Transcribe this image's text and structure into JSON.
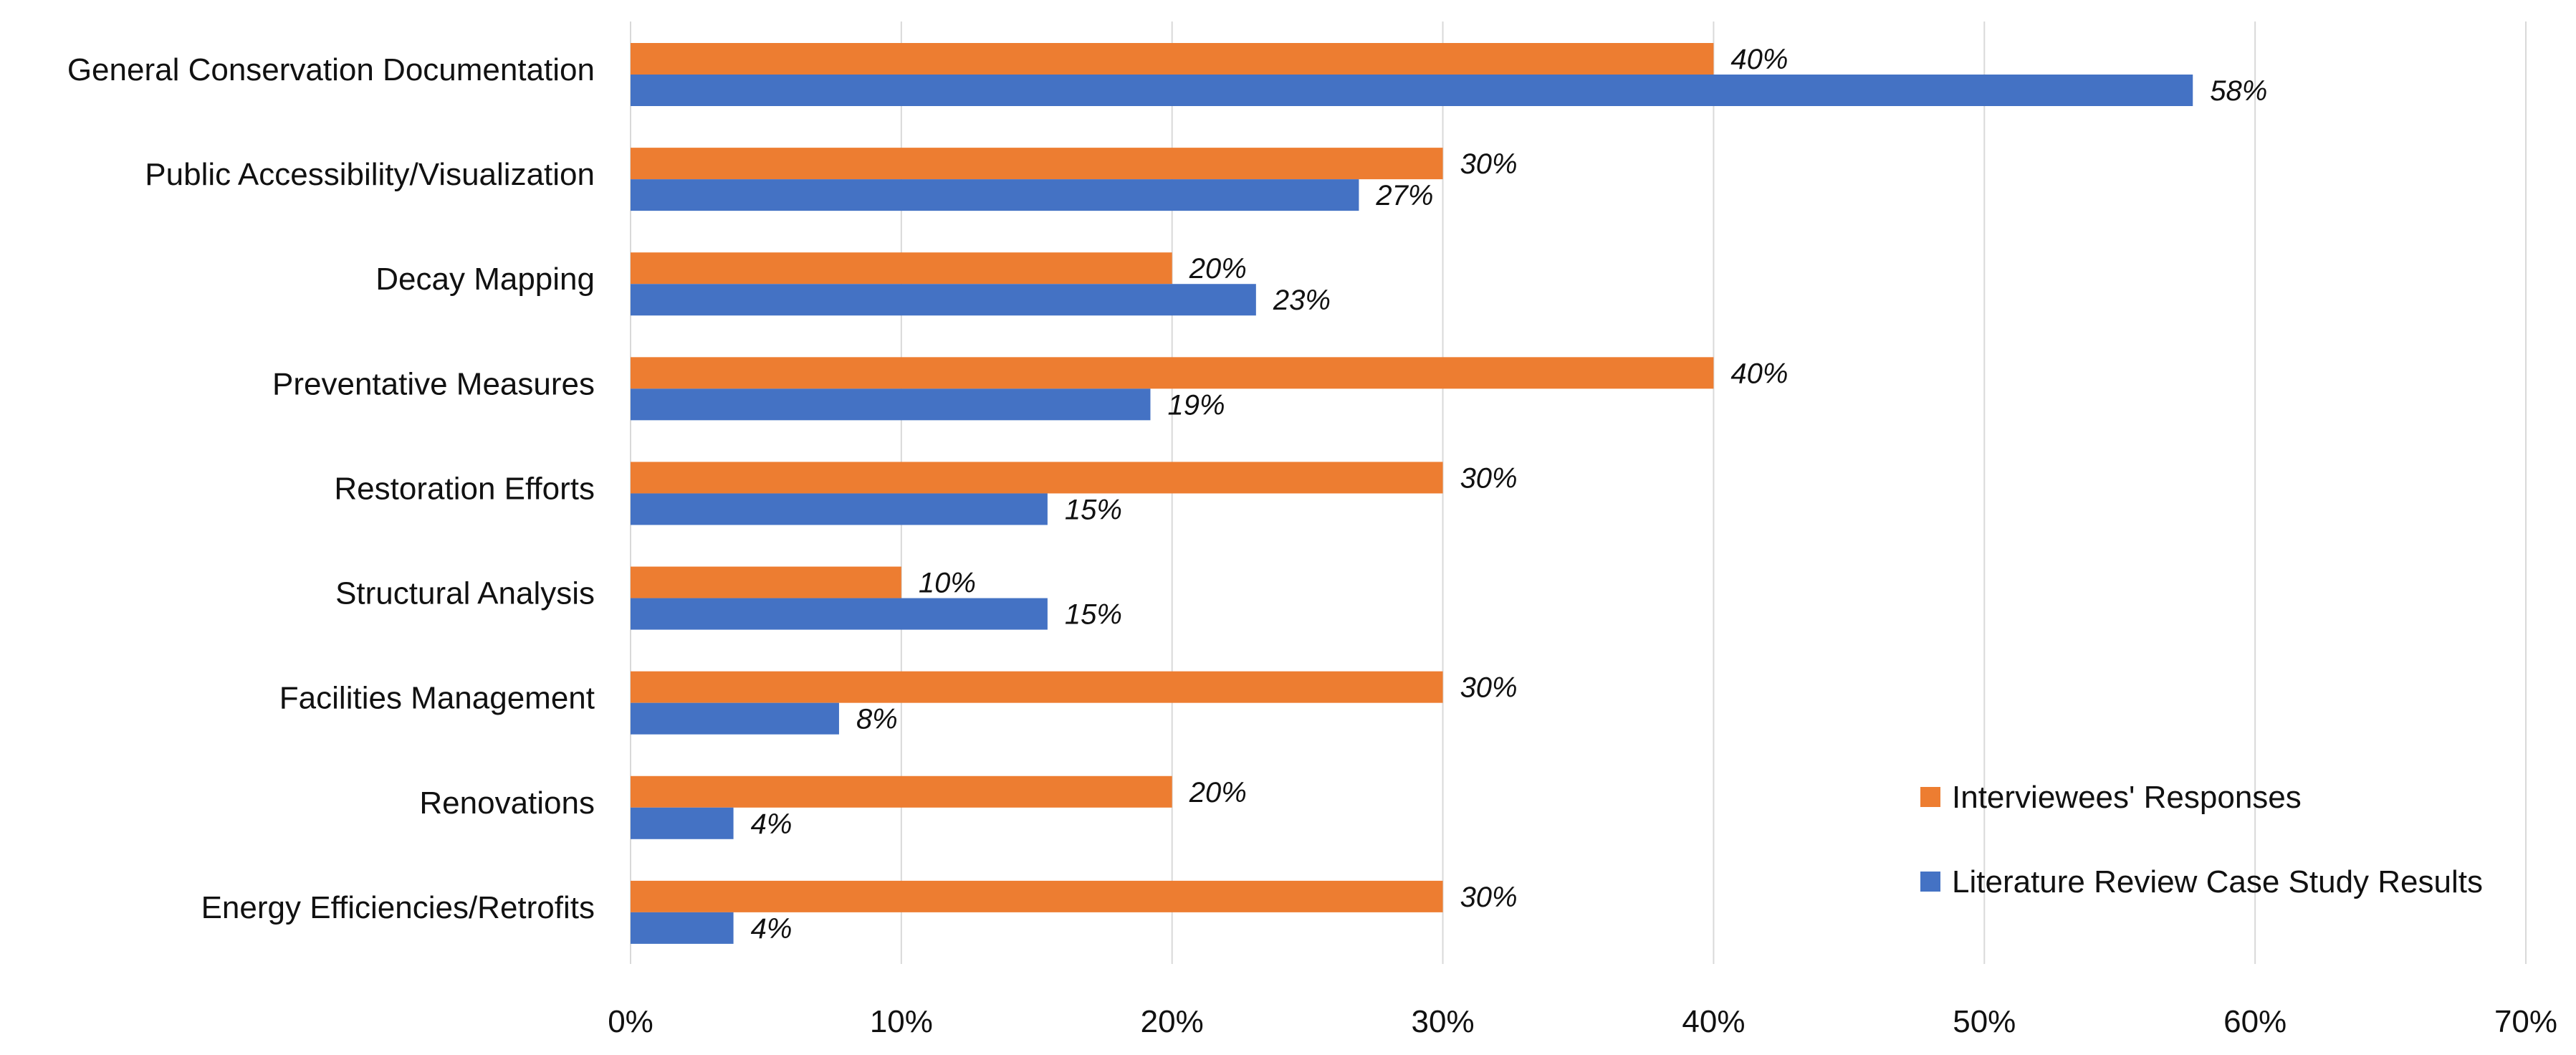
{
  "chart_data": {
    "type": "bar",
    "orientation": "horizontal",
    "title": "",
    "xlabel": "",
    "ylabel": "",
    "xlim": [
      0,
      70
    ],
    "x_ticks": [
      0,
      10,
      20,
      30,
      40,
      50,
      60,
      70
    ],
    "x_tick_labels": [
      "0%",
      "10%",
      "20%",
      "30%",
      "40%",
      "50%",
      "60%",
      "70%"
    ],
    "grid": "vertical",
    "legend_position": "bottom-right",
    "categories": [
      "General Conservation Documentation",
      "Public Accessibility/Visualization",
      "Decay Mapping",
      "Preventative Measures",
      "Restoration Efforts",
      "Structural Analysis",
      "Facilities Management",
      "Renovations",
      "Energy Efficiencies/Retrofits"
    ],
    "series": [
      {
        "name": "Interviewees' Responses",
        "color": "#ED7D31",
        "values": [
          40,
          30,
          20,
          40,
          30,
          10,
          30,
          20,
          30
        ],
        "labels": [
          "40%",
          "30%",
          "20%",
          "40%",
          "30%",
          "10%",
          "30%",
          "20%",
          "30%"
        ]
      },
      {
        "name": "Literature Review Case Study Results",
        "color": "#4472C4",
        "values": [
          57.7,
          26.9,
          23.1,
          19.2,
          15.4,
          15.4,
          7.7,
          3.8,
          3.8
        ],
        "labels": [
          "58%",
          "27%",
          "23%",
          "19%",
          "15%",
          "15%",
          "8%",
          "4%",
          "4%"
        ]
      }
    ]
  }
}
